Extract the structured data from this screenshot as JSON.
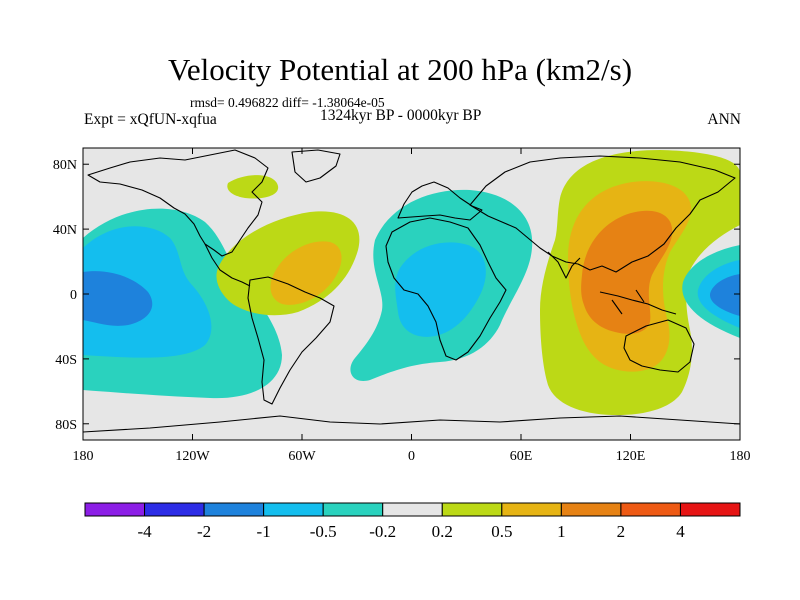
{
  "title": "Velocity Potential at 200 hPa (km2/s)",
  "stats": "rmsd= 0.496822 diff= -1.38064e-05",
  "expt": "Expt = xQfUN-xqfua",
  "period": "1324kyr BP - 0000kyr BP",
  "season": "ANN",
  "map": {
    "lon_range": [
      -180,
      180
    ],
    "lat_range": [
      -90,
      90
    ],
    "x_ticks": [
      {
        "lon": -180,
        "label": "180"
      },
      {
        "lon": -120,
        "label": "120W"
      },
      {
        "lon": -60,
        "label": "60W"
      },
      {
        "lon": 0,
        "label": "0"
      },
      {
        "lon": 60,
        "label": "60E"
      },
      {
        "lon": 120,
        "label": "120E"
      },
      {
        "lon": 180,
        "label": "180"
      }
    ],
    "y_ticks": [
      {
        "lat": 80,
        "label": "80N"
      },
      {
        "lat": 40,
        "label": "40N"
      },
      {
        "lat": 0,
        "label": "0"
      },
      {
        "lat": -40,
        "label": "40S"
      },
      {
        "lat": -80,
        "label": "80S"
      }
    ]
  },
  "colorbar": {
    "levels": [
      "-4",
      "-2",
      "-1",
      "-0.5",
      "-0.2",
      "0.2",
      "0.5",
      "1",
      "2",
      "4"
    ],
    "colors": [
      "#8c1ee6",
      "#2d2de6",
      "#1e82dc",
      "#14beee",
      "#2ad2be",
      "#e6e6e6",
      "#bcd916",
      "#e6b414",
      "#e68214",
      "#ee5a14",
      "#e61414"
    ]
  },
  "palette": {
    "neg_strong": "#1e82dc",
    "neg_mid": "#14beee",
    "neg_weak": "#2ad2be",
    "neutral": "#e6e6e6",
    "pos_weak": "#bcd916",
    "pos_mid": "#e6b414",
    "pos_strong": "#e68214"
  }
}
